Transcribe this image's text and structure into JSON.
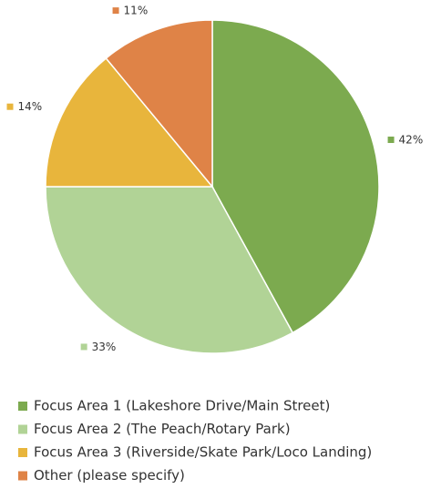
{
  "chart_data": {
    "type": "pie",
    "categories": [
      "Focus Area 1 (Lakeshore Drive/Main Street)",
      "Focus Area 2 (The Peach/Rotary Park)",
      "Focus Area 3 (Riverside/Skate Park/Loco Landing)",
      "Other (please specify)"
    ],
    "values": [
      42,
      33,
      14,
      11
    ],
    "value_labels": [
      "42%",
      "33%",
      "14%",
      "11%"
    ],
    "colors": [
      "#7caa4f",
      "#b1d396",
      "#e8b53c",
      "#df8347"
    ],
    "legend": "bottom"
  }
}
